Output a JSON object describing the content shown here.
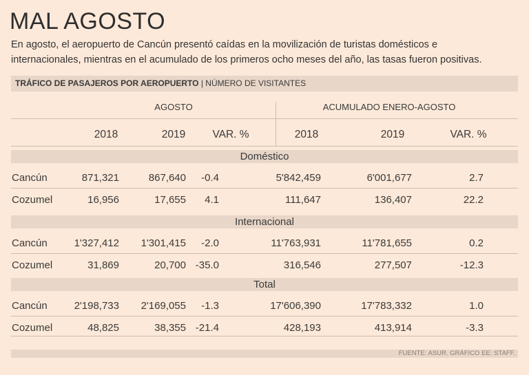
{
  "title": "MAL AGOSTO",
  "subtitle": [
    "En agosto, el aeropuerto de Cancún presentó caídas en la movilización de turistas domésticos e",
    "internacionales, mientras en el acumulado de los primeros ocho meses del año, las tasas fueron positivas."
  ],
  "header": {
    "bold": "TRÁFICO DE PASAJEROS POR AEROPUERTO",
    "sep": "|",
    "light": "NÚMERO DE VISITANTES"
  },
  "groups": [
    "AGOSTO",
    "ACUMULADO ENERO-AGOSTO"
  ],
  "columns": [
    "2018",
    "2019",
    "VAR. %",
    "2018",
    "2019",
    "VAR. %"
  ],
  "sections": [
    {
      "name": "Doméstico",
      "rows": [
        {
          "airport": "Cancún",
          "values": [
            "871,321",
            "867,640",
            "-0.4",
            "5'842,459",
            "6'001,677",
            "2.7"
          ]
        },
        {
          "airport": "Cozumel",
          "values": [
            "16,956",
            "17,655",
            "4.1",
            "111,647",
            "136,407",
            "22.2"
          ]
        }
      ]
    },
    {
      "name": "Internacional",
      "rows": [
        {
          "airport": "Cancún",
          "values": [
            "1'327,412",
            "1'301,415",
            "-2.0",
            "11'763,931",
            "11'781,655",
            "0.2"
          ]
        },
        {
          "airport": "Cozumel",
          "values": [
            "31,869",
            "20,700",
            "-35.0",
            "316,546",
            "277,507",
            "-12.3"
          ]
        }
      ]
    },
    {
      "name": "Total",
      "rows": [
        {
          "airport": "Cancún",
          "values": [
            "2'198,733",
            "2'169,055",
            "-1.3",
            "17'606,390",
            "17'783,332",
            "1.0"
          ]
        },
        {
          "airport": "Cozumel",
          "values": [
            "48,825",
            "38,355",
            "-21.4",
            "428,193",
            "413,914",
            "-3.3"
          ]
        }
      ]
    }
  ],
  "footer": "FUENTE: ASUR. GRÁFICO EE: STAFF."
}
